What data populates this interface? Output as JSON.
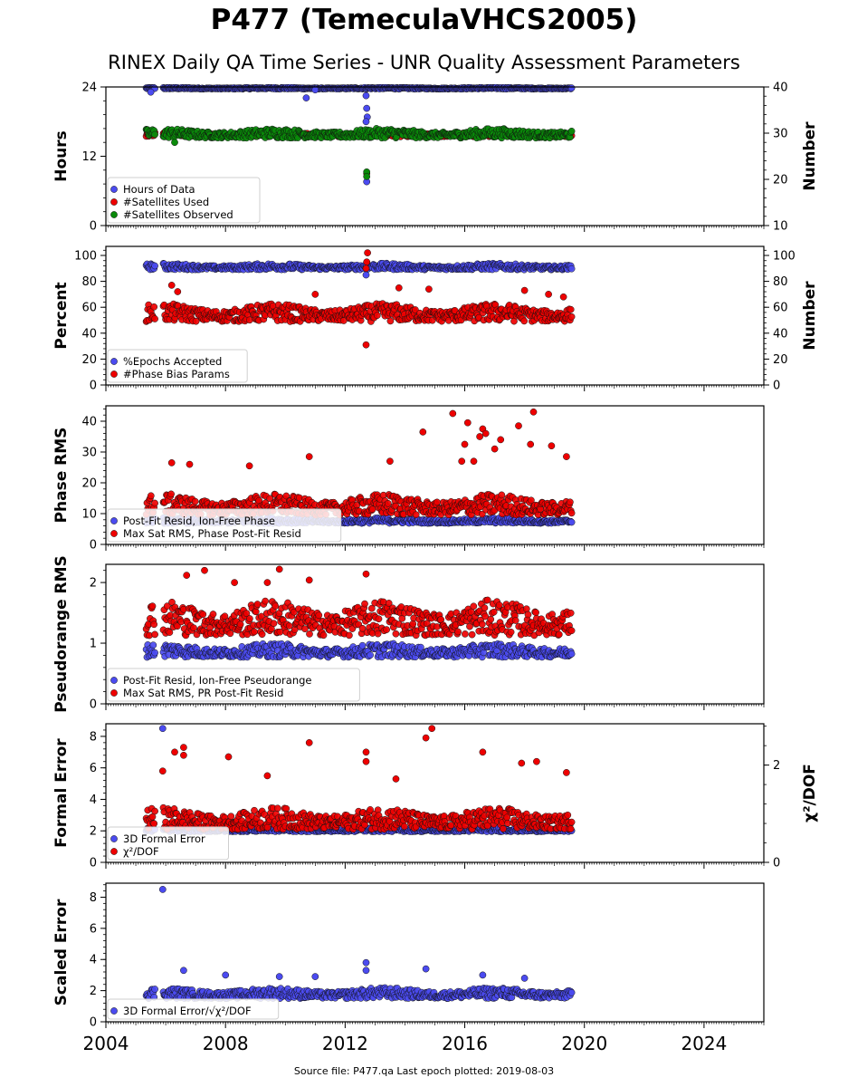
{
  "header": {
    "title": "P477 (TemeculaVHCS2005)",
    "subtitle": "RINEX Daily QA Time Series - UNR Quality Assessment Parameters"
  },
  "footer": {
    "source": "Source file: P477.qa Last epoch plotted: 2019-08-03"
  },
  "colors": {
    "blue": "#4b4bf0",
    "red": "#ee0000",
    "green": "#0a8a0a"
  },
  "chart_data": [
    {
      "type": "scatter",
      "ylabel": "Hours",
      "y2label": "Number",
      "xlim": [
        2004,
        2026
      ],
      "ylim": [
        0,
        24
      ],
      "y2lim": [
        10,
        40
      ],
      "xticks": [
        "2004",
        "2008",
        "2012",
        "2016",
        "2020",
        "2024"
      ],
      "yticks": [
        0,
        12,
        24
      ],
      "y2ticks": [
        10,
        20,
        30,
        40
      ],
      "legend": "lower-left",
      "series": [
        {
          "name": "Hours of Data",
          "color": "blue",
          "axis": "left",
          "band": [
            23.6,
            24.0
          ],
          "points": [
            [
              2005.5,
              23.1
            ],
            [
              2009.7,
              16.0
            ],
            [
              2010.7,
              22.1
            ],
            [
              2012.7,
              22.5
            ],
            [
              2012.72,
              20.3
            ],
            [
              2012.74,
              18.8
            ],
            [
              2012.7,
              18.0
            ],
            [
              2012.72,
              7.6
            ],
            [
              2011.0,
              23.5
            ]
          ]
        },
        {
          "name": "#Satellites Used",
          "color": "red",
          "axis": "right",
          "band": [
            29.0,
            30.5
          ],
          "points": [
            [
              2009.2,
              30.0
            ],
            [
              2012.72,
              21.3
            ]
          ]
        },
        {
          "name": "#Satellites Observed",
          "color": "green",
          "axis": "right",
          "band": [
            28.5,
            31.5
          ],
          "points": [
            [
              2006.3,
              28.0
            ],
            [
              2012.72,
              21.6
            ],
            [
              2012.72,
              20.6
            ]
          ]
        }
      ]
    },
    {
      "type": "scatter",
      "ylabel": "Percent",
      "y2label": "Number",
      "xlim": [
        2004,
        2026
      ],
      "ylim": [
        0,
        107
      ],
      "y2lim": [
        0,
        107
      ],
      "yticks": [
        0,
        20,
        40,
        60,
        80,
        100
      ],
      "y2ticks": [
        0,
        20,
        40,
        60,
        80,
        100
      ],
      "legend": "lower-left",
      "series": [
        {
          "name": "%Epochs Accepted",
          "color": "blue",
          "axis": "left",
          "band": [
            88,
            95
          ],
          "points": [
            [
              2012.7,
              85
            ]
          ]
        },
        {
          "name": "#Phase Bias Params",
          "color": "red",
          "axis": "right",
          "band": [
            46,
            66
          ],
          "points": [
            [
              2012.7,
              31
            ],
            [
              2012.75,
              102
            ],
            [
              2012.72,
              95
            ],
            [
              2012.7,
              90
            ],
            [
              2006.2,
              77
            ],
            [
              2006.4,
              72
            ],
            [
              2013.8,
              75
            ],
            [
              2014.8,
              74
            ],
            [
              2018.0,
              73
            ],
            [
              2018.8,
              70
            ],
            [
              2019.3,
              68
            ],
            [
              2011.0,
              70
            ]
          ]
        }
      ]
    },
    {
      "type": "scatter",
      "ylabel": "Phase RMS",
      "xlim": [
        2004,
        2026
      ],
      "ylim": [
        0,
        45
      ],
      "yticks": [
        0,
        10,
        20,
        30,
        40
      ],
      "legend": "lower-left",
      "series": [
        {
          "name": "Post-Fit Resid, Ion-Free Phase",
          "color": "blue",
          "axis": "left",
          "band": [
            6.5,
            9
          ],
          "points": []
        },
        {
          "name": "Max Sat RMS, Phase Post-Fit Resid",
          "color": "red",
          "axis": "left",
          "band": [
            8,
            18
          ],
          "points": [
            [
              2014.6,
              36.5
            ],
            [
              2015.6,
              42.5
            ],
            [
              2016.0,
              32.5
            ],
            [
              2016.1,
              39.5
            ],
            [
              2016.3,
              27
            ],
            [
              2016.6,
              37.5
            ],
            [
              2016.7,
              36
            ],
            [
              2016.5,
              35
            ],
            [
              2017.0,
              31
            ],
            [
              2017.2,
              34
            ],
            [
              2017.8,
              38.5
            ],
            [
              2018.3,
              43
            ],
            [
              2018.2,
              32.5
            ],
            [
              2018.9,
              32
            ],
            [
              2019.4,
              28.5
            ],
            [
              2015.9,
              27
            ],
            [
              2010.8,
              28.5
            ],
            [
              2006.2,
              26.5
            ],
            [
              2006.8,
              26
            ],
            [
              2008.8,
              25.5
            ],
            [
              2013.5,
              27
            ]
          ]
        }
      ]
    },
    {
      "type": "scatter",
      "ylabel": "Pseudorange RMS",
      "xlim": [
        2004,
        2026
      ],
      "ylim": [
        0,
        2.3
      ],
      "yticks": [
        0,
        1,
        2
      ],
      "legend": "lower-left",
      "series": [
        {
          "name": "Post-Fit Resid, Ion-Free Pseudorange",
          "color": "blue",
          "axis": "left",
          "band": [
            0.72,
            1.05
          ],
          "points": []
        },
        {
          "name": "Max Sat RMS, PR Post-Fit Resid",
          "color": "red",
          "axis": "left",
          "band": [
            1.0,
            1.85
          ],
          "points": [
            [
              2009.8,
              2.22
            ],
            [
              2010.8,
              2.04
            ],
            [
              2012.7,
              2.14
            ],
            [
              2007.3,
              2.2
            ],
            [
              2006.7,
              2.12
            ],
            [
              2009.4,
              2.0
            ],
            [
              2008.3,
              2.0
            ]
          ]
        }
      ]
    },
    {
      "type": "scatter",
      "ylabel": "Formal Error",
      "y2label": "χ²/DOF",
      "xlim": [
        2004,
        2026
      ],
      "ylim": [
        0,
        8.8
      ],
      "y2lim": [
        0,
        2.85
      ],
      "yticks": [
        0,
        2,
        4,
        6,
        8
      ],
      "y2ticks": [
        0,
        2
      ],
      "legend": "lower-left",
      "series": [
        {
          "name": "3D Formal Error",
          "color": "blue",
          "axis": "left",
          "band": [
            1.9,
            2.25
          ],
          "points": [
            [
              2005.9,
              8.5
            ]
          ]
        },
        {
          "name": "χ²/DOF",
          "color": "red",
          "axis": "left",
          "band": [
            1.8,
            3.8
          ],
          "points": [
            [
              2014.7,
              7.9
            ],
            [
              2014.9,
              8.5
            ],
            [
              2010.8,
              7.6
            ],
            [
              2006.3,
              7.0
            ],
            [
              2006.6,
              7.3
            ],
            [
              2006.6,
              6.8
            ],
            [
              2008.1,
              6.7
            ],
            [
              2012.7,
              7.0
            ],
            [
              2012.7,
              6.4
            ],
            [
              2016.6,
              7.0
            ],
            [
              2005.9,
              5.8
            ],
            [
              2009.4,
              5.5
            ],
            [
              2013.7,
              5.3
            ],
            [
              2017.9,
              6.3
            ],
            [
              2018.4,
              6.4
            ],
            [
              2019.4,
              5.7
            ]
          ]
        }
      ]
    },
    {
      "type": "scatter",
      "ylabel": "Scaled Error",
      "xlim": [
        2004,
        2026
      ],
      "ylim": [
        0,
        8.9
      ],
      "yticks": [
        0,
        2,
        4,
        6,
        8
      ],
      "legend": "lower-left",
      "series": [
        {
          "name": "3D Formal Error/√χ²/DOF",
          "color": "blue",
          "axis": "left",
          "band": [
            1.35,
            2.35
          ],
          "points": [
            [
              2005.9,
              8.5
            ],
            [
              2012.7,
              3.8
            ],
            [
              2012.7,
              3.3
            ],
            [
              2006.6,
              3.3
            ],
            [
              2014.7,
              3.4
            ],
            [
              2008.0,
              3.0
            ],
            [
              2016.6,
              3.0
            ],
            [
              2009.8,
              2.9
            ],
            [
              2011.0,
              2.9
            ],
            [
              2018.0,
              2.8
            ]
          ]
        }
      ]
    }
  ]
}
